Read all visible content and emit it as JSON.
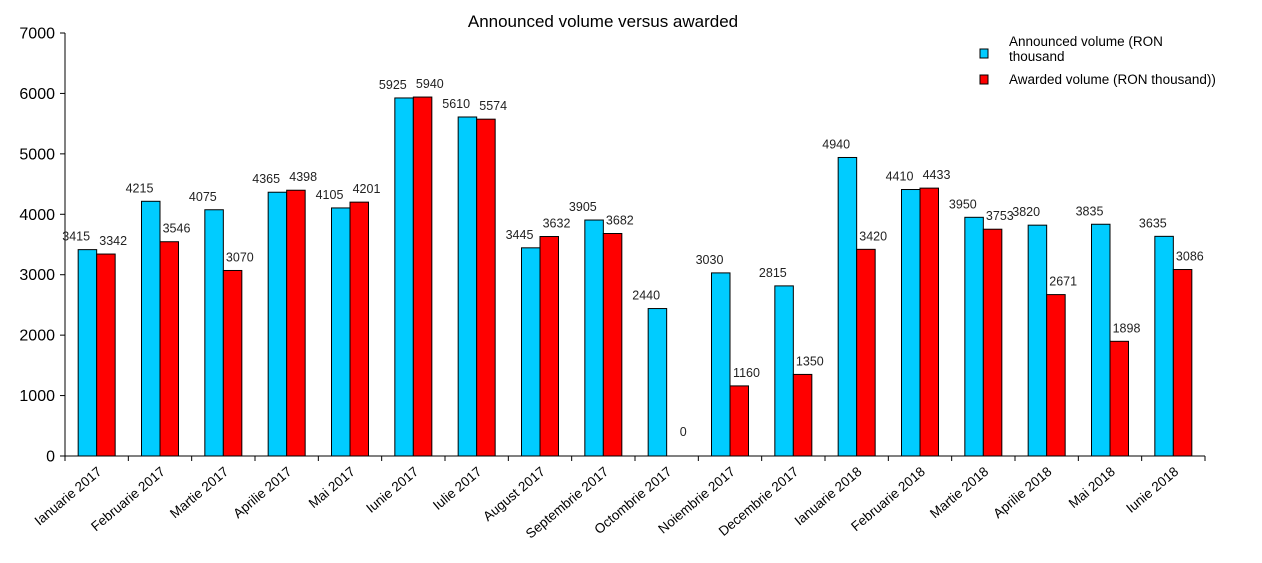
{
  "chart_data": {
    "type": "bar",
    "title": "Announced volume versus awarded",
    "xlabel": "",
    "ylabel": "",
    "ylim": [
      0,
      7000
    ],
    "yticks": [
      0,
      1000,
      2000,
      3000,
      4000,
      5000,
      6000,
      7000
    ],
    "grid": false,
    "legend_position": "top-right",
    "categories": [
      "Ianuarie 2017",
      "Februarie 2017",
      "Martie 2017",
      "Aprilie 2017",
      "Mai 2017",
      "Iunie 2017",
      "Iulie 2017",
      "August 2017",
      "Septembrie 2017",
      "Octombrie 2017",
      "Noiembrie 2017",
      "Decembrie 2017",
      "Ianuarie 2018",
      "Februarie 2018",
      "Martie 2018",
      "Aprilie 2018",
      "Mai 2018",
      "Iunie 2018"
    ],
    "series": [
      {
        "name": "Announced volume (RON thousand",
        "color": "#00CCFF",
        "values": [
          3415,
          4215,
          4075,
          4365,
          4105,
          5925,
          5610,
          3445,
          3905,
          2440,
          3030,
          2815,
          4940,
          4410,
          3950,
          3820,
          3835,
          3635
        ]
      },
      {
        "name": "Awarded volume (RON thousand))",
        "color": "#FF0000",
        "values": [
          3342,
          3546,
          3070,
          4398,
          4201,
          5940,
          5574,
          3632,
          3682,
          0,
          1160,
          1350,
          3420,
          4433,
          3753,
          2671,
          1898,
          3086
        ]
      }
    ]
  }
}
